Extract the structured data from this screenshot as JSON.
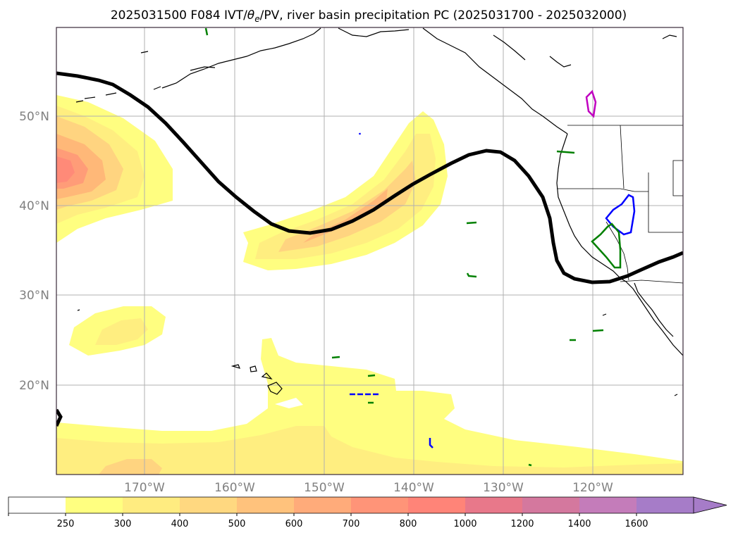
{
  "map": {
    "title_main": "2025031500 F084 IVT/",
    "title_theta": "θ",
    "title_sub": "e",
    "title_rest": "/PV, river basin precipitation PC (2025031700 - 2025032000)",
    "lat_labels": [
      "50°N",
      "40°N",
      "30°N",
      "20°N"
    ],
    "lon_labels": [
      "170°W",
      "160°W",
      "150°W",
      "140°W",
      "130°W",
      "120°W"
    ],
    "colors": {
      "coastline": "#000000",
      "pv_contour": "#000000",
      "gridline": "#b0b0b0",
      "frame": "#3a2a3a",
      "basin_blue": "#0000ff",
      "basin_green": "#008000",
      "basin_magenta": "#c000c0",
      "ivt_250": "#fffe80",
      "ivt_300": "#ffee80",
      "ivt_400": "#ffd480",
      "ivt_500": "#ffb878",
      "ivt_600": "#ff9c78",
      "ivt_700": "#ff8a78"
    }
  },
  "colorbar": {
    "ticks": [
      "250",
      "300",
      "400",
      "500",
      "600",
      "700",
      "800",
      "1000",
      "1200",
      "1400",
      "1600"
    ],
    "colors": [
      "#ffffff",
      "#ffff80",
      "#ffec80",
      "#ffd880",
      "#ffc27c",
      "#ffab7a",
      "#ff9478",
      "#ff8478",
      "#e8788a",
      "#d4789e",
      "#c47cba",
      "#a67cc8"
    ],
    "extend": "max"
  },
  "chart_data": {
    "type": "map",
    "projection": "equirectangular",
    "title": "2025031500 F084 IVT/θe/PV, river basin precipitation PC (2025031700 - 2025032000)",
    "lon_range": [
      -180,
      -110
    ],
    "lat_range": [
      10,
      60
    ],
    "grid": true,
    "lat_ticks": [
      50,
      40,
      30,
      20
    ],
    "lon_ticks": [
      -170,
      -160,
      -150,
      -140,
      -130,
      -120
    ],
    "ivt_levels": [
      250,
      300,
      400,
      500,
      600,
      700,
      800,
      1000,
      1200,
      1400,
      1600
    ],
    "colorbar_extend": "max",
    "fields": [
      "IVT (shaded)",
      "PV contour (black)",
      "river basin precipitation PC outlines"
    ]
  }
}
